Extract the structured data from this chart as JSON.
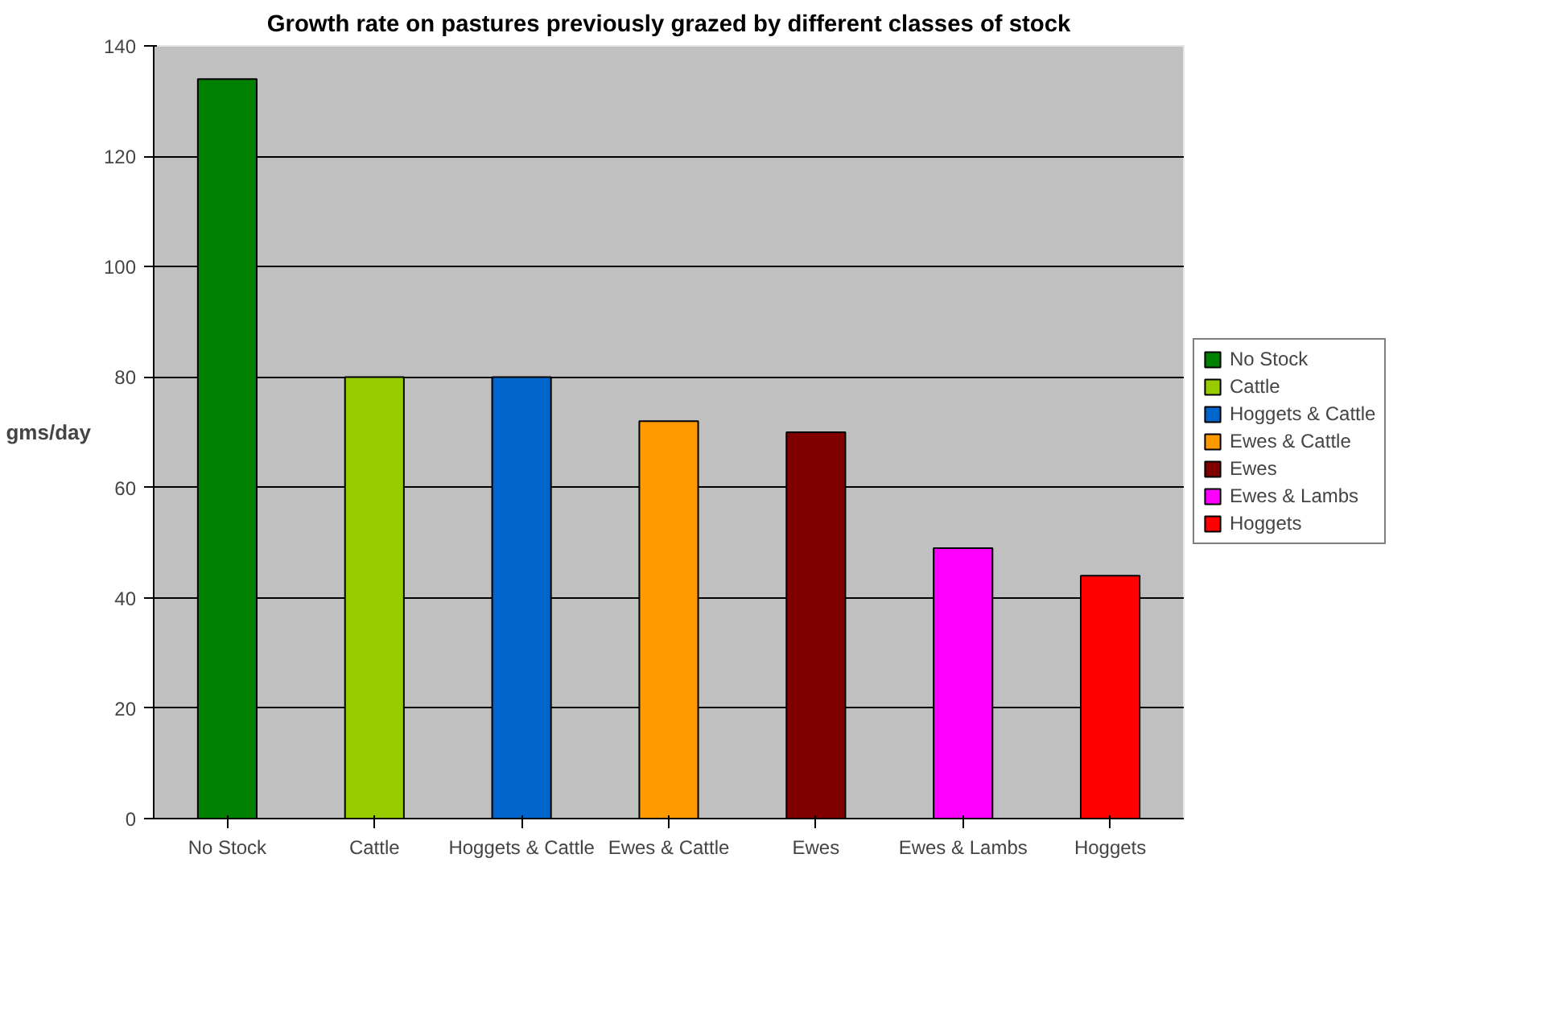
{
  "chart_data": {
    "type": "bar",
    "title": "Growth rate on pastures previously grazed by different classes of stock",
    "ylabel": "gms/day",
    "categories": [
      "No Stock",
      "Cattle",
      "Hoggets & Cattle",
      "Ewes & Cattle",
      "Ewes",
      "Ewes & Lambs",
      "Hoggets"
    ],
    "series": [
      {
        "name": "No Stock",
        "color": "#008000",
        "values": [
          134,
          null,
          null,
          null,
          null,
          null,
          null
        ]
      },
      {
        "name": "Cattle",
        "color": "#99cc00",
        "values": [
          null,
          80,
          null,
          null,
          null,
          null,
          null
        ]
      },
      {
        "name": "Hoggets & Cattle",
        "color": "#0066cc",
        "values": [
          null,
          null,
          80,
          null,
          null,
          null,
          null
        ]
      },
      {
        "name": "Ewes & Cattle",
        "color": "#ff9900",
        "values": [
          null,
          null,
          null,
          72,
          null,
          null,
          null
        ]
      },
      {
        "name": "Ewes",
        "color": "#800000",
        "values": [
          null,
          null,
          null,
          null,
          70,
          null,
          null
        ]
      },
      {
        "name": "Ewes & Lambs",
        "color": "#ff00ff",
        "values": [
          null,
          null,
          null,
          null,
          null,
          49,
          null
        ]
      },
      {
        "name": "Hoggets",
        "color": "#ff0000",
        "values": [
          null,
          null,
          null,
          null,
          null,
          null,
          44
        ]
      }
    ],
    "ylim": [
      0,
      140
    ],
    "yticks": [
      0,
      20,
      40,
      60,
      80,
      100,
      120,
      140
    ],
    "grid": "y",
    "legend": "right"
  }
}
